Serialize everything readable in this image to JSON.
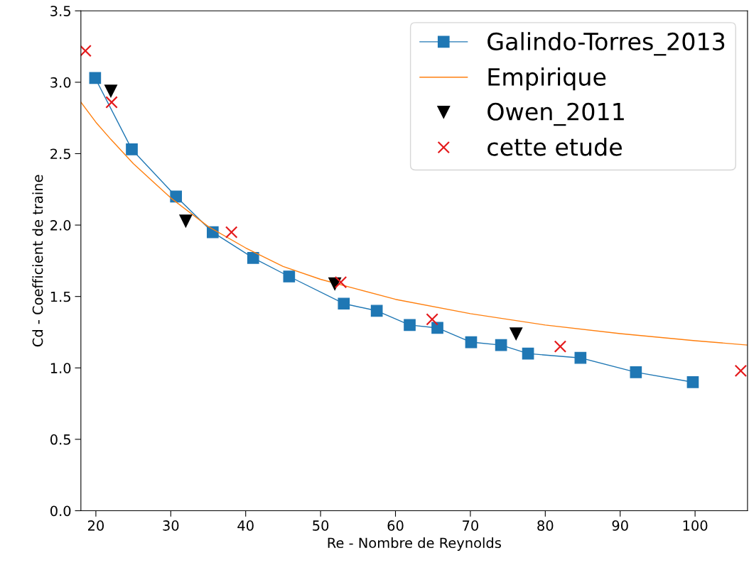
{
  "chart_data": {
    "type": "line",
    "xlabel": "Re - Nombre de Reynolds",
    "ylabel": "Cd - Coefficient de traine",
    "xlim": [
      18,
      107
    ],
    "xticks": [
      20,
      30,
      40,
      50,
      60,
      70,
      80,
      90,
      100
    ],
    "ylim": [
      0,
      3.5
    ],
    "yticks": [
      {
        "value": 0,
        "label": "0.0"
      },
      0.5,
      {
        "value": 1,
        "label": "1.0"
      },
      1.5,
      {
        "value": 2,
        "label": "2.0"
      },
      2.5,
      {
        "value": 3,
        "label": "3.0"
      },
      3.5
    ],
    "grid": false,
    "legend": "top right",
    "series": [
      {
        "name": "Galindo-Torres_2013",
        "marker": "square",
        "color": "#1f77b4",
        "x": [
          19.9,
          24.8,
          30.7,
          35.6,
          41.0,
          45.8,
          53.1,
          57.5,
          61.9,
          65.6,
          70.1,
          74.1,
          77.7,
          84.7,
          92.1,
          99.7
        ],
        "values": [
          3.03,
          2.53,
          2.2,
          1.95,
          1.77,
          1.64,
          1.45,
          1.4,
          1.3,
          1.28,
          1.18,
          1.16,
          1.1,
          1.07,
          0.97,
          0.9
        ]
      },
      {
        "name": "Empirique",
        "marker": "none",
        "color": "#ff7f0e",
        "x": [
          18,
          20,
          22,
          25,
          30,
          35,
          40,
          45,
          50,
          55,
          60,
          70,
          80,
          90,
          100,
          107
        ],
        "values": [
          2.86,
          2.72,
          2.6,
          2.43,
          2.19,
          1.99,
          1.84,
          1.71,
          1.62,
          1.55,
          1.48,
          1.38,
          1.3,
          1.24,
          1.19,
          1.16
        ]
      },
      {
        "name": "Owen_2011",
        "type": "scatter",
        "marker": "triangle",
        "color": "#000000",
        "x": [
          22.0,
          32.0,
          51.9,
          76.1
        ],
        "values": [
          2.94,
          2.03,
          1.59,
          1.24
        ]
      },
      {
        "name": "cette etude",
        "type": "scatter",
        "marker": "cross",
        "color": "#e41a1c",
        "x": [
          18.6,
          22.1,
          38.1,
          52.7,
          64.9,
          82.0,
          106.1
        ],
        "values": [
          3.22,
          2.86,
          1.95,
          1.6,
          1.34,
          1.15,
          0.98
        ]
      }
    ]
  }
}
